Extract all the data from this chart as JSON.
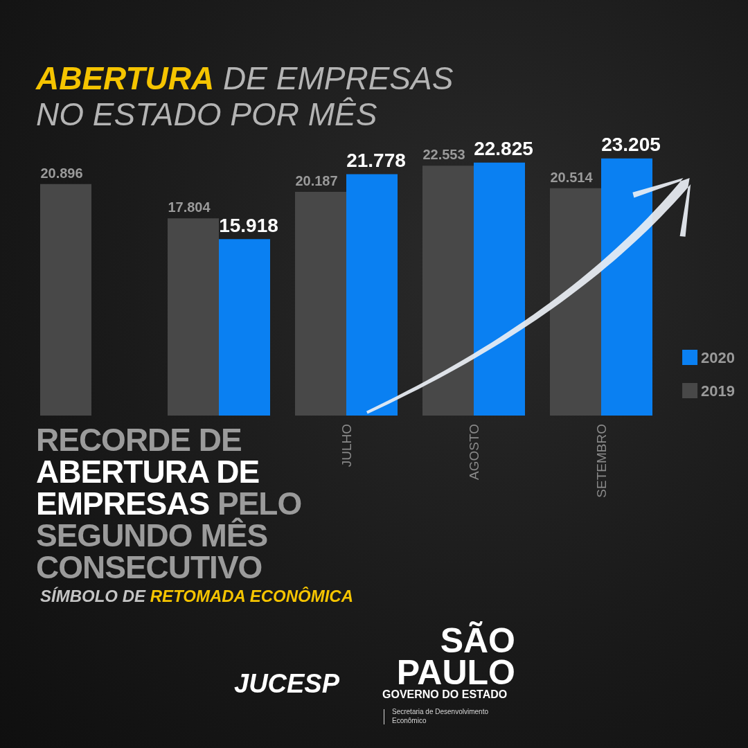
{
  "chart_data": {
    "type": "bar",
    "title": "ABERTURA DE EMPRESAS NO ESTADO POR MÊS",
    "categories": [
      null,
      null,
      "JULHO",
      "AGOSTO",
      "SETEMBRO"
    ],
    "series": [
      {
        "name": "2019",
        "color": "#484848",
        "values": [
          20896,
          17804,
          20187,
          22553,
          20514
        ],
        "value_labels": [
          "20.896",
          "17.804",
          "20.187",
          "22.553",
          "20.514"
        ]
      },
      {
        "name": "2020",
        "color": "#0a80f2",
        "values": [
          null,
          15918,
          21778,
          22825,
          23205
        ],
        "value_labels": [
          null,
          "15.918",
          "21.778",
          "22.825",
          "23.205"
        ]
      }
    ],
    "legend": "right",
    "grid": false,
    "tick_labels": "x",
    "annotations": [
      "RECORDE DE ABERTURA DE EMPRESAS PELO SEGUNDO MÊS CONSECUTIVO",
      "SÍMBOLO DE RETOMADA ECONÔMICA",
      "JUCESP",
      "SÃO PAULO",
      "GOVERNO DO ESTADO",
      "Secretaria de Desenvolvimento Econômico"
    ]
  }
}
